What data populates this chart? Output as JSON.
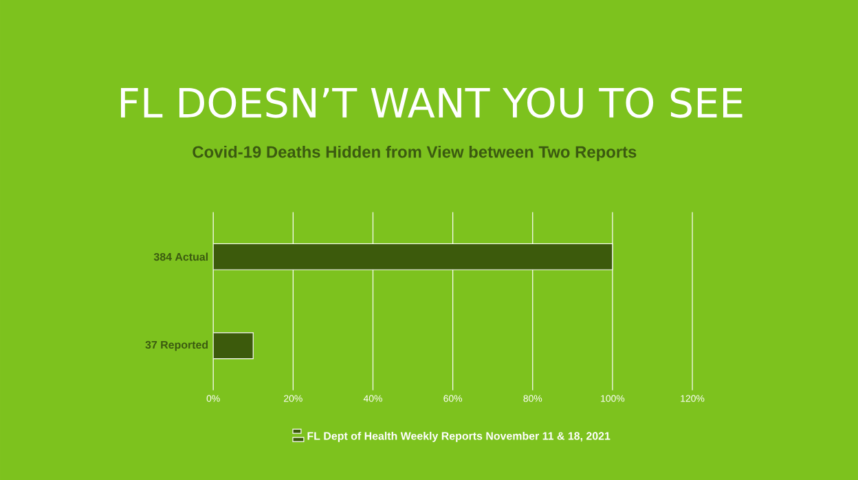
{
  "chart_data": {
    "type": "bar",
    "orientation": "horizontal",
    "title": "FL DOESN’T WANT YOU TO SEE",
    "subtitle": "Covid-19 Deaths Hidden from View between Two Reports",
    "categories": [
      "384 Actual",
      "37 Reported"
    ],
    "series": [
      {
        "name": "FL Dept of Health Weekly Reports November 11 & 18, 2021",
        "color": "#3c5a0c",
        "values": [
          100,
          10
        ]
      }
    ],
    "xlim": [
      0,
      120
    ],
    "xticks": [
      {
        "value": 0,
        "label": "0%"
      },
      {
        "value": 20,
        "label": "20%"
      },
      {
        "value": 40,
        "label": "40%"
      },
      {
        "value": 60,
        "label": "60%"
      },
      {
        "value": 80,
        "label": "80%"
      },
      {
        "value": 100,
        "label": "100%"
      },
      {
        "value": 120,
        "label": "120%"
      }
    ],
    "grid": "x",
    "legend": "bottom"
  }
}
